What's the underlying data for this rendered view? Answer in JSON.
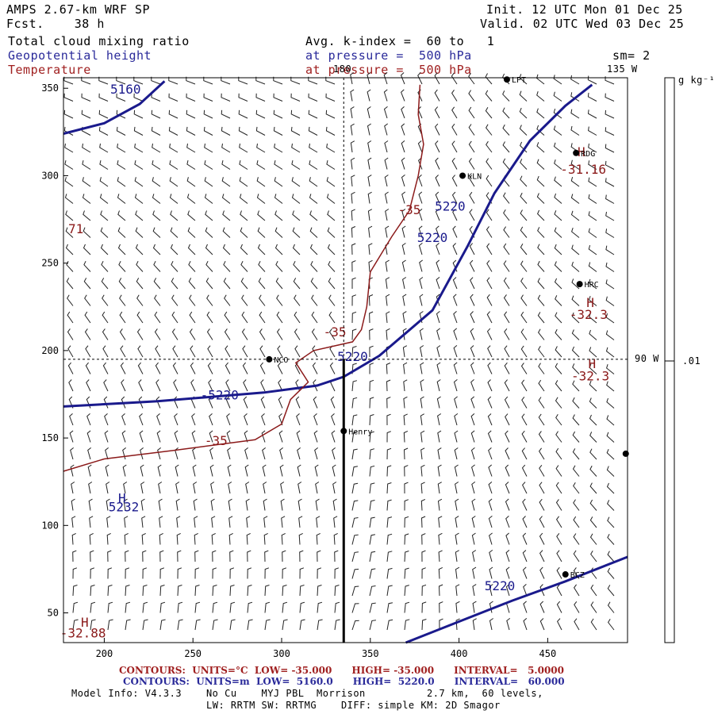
{
  "header": {
    "model": "AMPS 2.67-km WRF SP",
    "fcst": "Fcst.    38 h",
    "init": "Init. 12 UTC Mon 01 Dec 25",
    "valid": "Valid. 02 UTC Wed 03 Dec 25",
    "field1": "Total cloud mixing ratio",
    "field2": "Geopotential height",
    "field3": "Temperature",
    "avg": "Avg. k-index =  60 to   1",
    "pressure1": "at pressure =  500 hPa",
    "pressure2": "at pressure =  500 hPa",
    "sm": "sm= 2"
  },
  "colorbar": {
    "unit": "g kg⁻¹",
    "tick": ".01"
  },
  "lon_labels": {
    "top_180": "180",
    "top_135w": "135 W",
    "right_90w": "90 W"
  },
  "chart_data": {
    "type": "map",
    "x_ticks": [
      "200",
      "250",
      "300",
      "350",
      "400",
      "450"
    ],
    "y_ticks": [
      "350",
      "300",
      "250",
      "200",
      "150",
      "100",
      "50"
    ],
    "xlim": [
      177,
      495
    ],
    "ylim": [
      33,
      356
    ],
    "stations": [
      {
        "name": "LPT",
        "x": 427,
        "y": 355
      },
      {
        "name": "RDG",
        "x": 466,
        "y": 313
      },
      {
        "name": "KLN",
        "x": 402,
        "y": 300
      },
      {
        "name": "HRC",
        "x": 468,
        "y": 238
      },
      {
        "name": "NCO",
        "x": 293,
        "y": 195
      },
      {
        "name": "Henry",
        "x": 335,
        "y": 154
      },
      {
        "name": "",
        "x": 494,
        "y": 141
      },
      {
        "name": "BCZ",
        "x": 460,
        "y": 72
      }
    ],
    "height_contours": [
      {
        "label": "5160",
        "points": [
          [
            177,
            324
          ],
          [
            200,
            330
          ],
          [
            220,
            341
          ],
          [
            234,
            354
          ]
        ]
      },
      {
        "label": "5220",
        "points": [
          [
            177,
            168
          ],
          [
            230,
            171
          ],
          [
            290,
            176
          ],
          [
            320,
            180
          ],
          [
            335,
            185
          ],
          [
            355,
            197
          ],
          [
            385,
            223
          ],
          [
            405,
            260
          ],
          [
            420,
            290
          ],
          [
            440,
            320
          ],
          [
            460,
            340
          ],
          [
            475,
            352
          ]
        ]
      },
      {
        "label": "5220",
        "points": [
          [
            370,
            33
          ],
          [
            400,
            45
          ],
          [
            430,
            57
          ],
          [
            460,
            68
          ],
          [
            495,
            82
          ]
        ]
      }
    ],
    "height_labels": [
      {
        "text": "5160",
        "x": 212,
        "y": 347
      },
      {
        "text": "5220",
        "x": 395,
        "y": 280
      },
      {
        "text": "5220",
        "x": 385,
        "y": 262
      },
      {
        "text": "5220",
        "x": 340,
        "y": 194
      },
      {
        "text": "-5220",
        "x": 265,
        "y": 172
      },
      {
        "text": "5220",
        "x": 423,
        "y": 63
      },
      {
        "text": "5232",
        "x": 211,
        "y": 108
      }
    ],
    "temp_contours": [
      {
        "label": "-35",
        "points": [
          [
            177,
            131
          ],
          [
            200,
            138
          ],
          [
            240,
            143
          ],
          [
            285,
            149
          ],
          [
            300,
            158
          ],
          [
            305,
            172
          ],
          [
            315,
            182
          ],
          [
            308,
            193
          ],
          [
            318,
            200
          ],
          [
            340,
            205
          ],
          [
            345,
            212
          ],
          [
            348,
            225
          ],
          [
            350,
            245
          ],
          [
            362,
            265
          ],
          [
            372,
            280
          ],
          [
            377,
            300
          ],
          [
            380,
            318
          ],
          [
            377,
            335
          ],
          [
            378,
            352
          ]
        ]
      }
    ],
    "temp_labels": [
      {
        "text": "-35",
        "x": 263,
        "y": 146
      },
      {
        "text": "-35",
        "x": 330,
        "y": 208
      },
      {
        "text": "-35",
        "x": 372,
        "y": 278
      },
      {
        "text": "-32.88",
        "x": 188,
        "y": 36
      },
      {
        "text": "-31.16",
        "x": 470,
        "y": 301
      },
      {
        "text": "-32.3",
        "x": 473,
        "y": 218
      },
      {
        "text": "-32.3",
        "x": 474,
        "y": 183
      },
      {
        "text": "71",
        "x": 184,
        "y": 267
      }
    ],
    "extrema": [
      {
        "kind": "H",
        "color": "blue",
        "x": 210,
        "y": 113
      },
      {
        "kind": "H",
        "color": "red",
        "x": 189,
        "y": 42
      },
      {
        "kind": "H",
        "color": "red",
        "x": 469,
        "y": 311
      },
      {
        "kind": "H",
        "color": "red",
        "x": 474,
        "y": 225
      },
      {
        "kind": "H",
        "color": "red",
        "x": 475,
        "y": 190
      }
    ],
    "dashed_lines": [
      {
        "name": "lon-180",
        "axis": "x",
        "value": 335
      },
      {
        "name": "lon-90w",
        "axis": "y",
        "value": 195
      }
    ],
    "section_line": {
      "x": 335,
      "y_from": 33,
      "y_to": 195
    },
    "wind_field": "barbs"
  },
  "footer": {
    "red_line": "CONTOURS:  UNITS=°C  LOW= -35.000      HIGH= -35.000      INTERVAL=   5.0000",
    "blue_line": "CONTOURS:  UNITS=m  LOW=  5160.0      HIGH=  5220.0      INTERVAL=   60.000",
    "info1": "Model Info: V4.3.3    No Cu    MYJ PBL  Morrison          2.7 km,  60 levels,",
    "info2": "LW: RRTM SW: RRTMG    DIFF: simple KM: 2D Smagor"
  },
  "colors": {
    "blue": "#1a1a8c",
    "red": "#8b1a1a",
    "black": "#000000"
  }
}
